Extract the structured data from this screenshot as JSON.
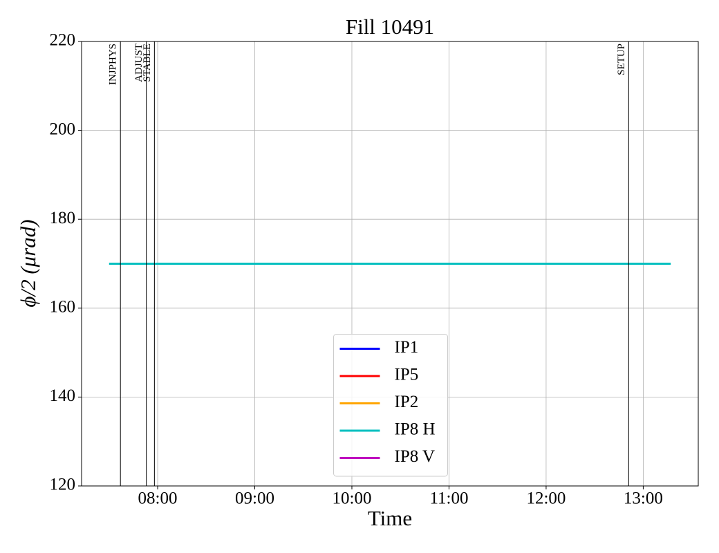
{
  "chart_data": {
    "type": "line",
    "title": "Fill 10491",
    "xlabel": "Time",
    "ylabel": "ϕ/2 (μrad)",
    "x": [
      "07:30",
      "13:17"
    ],
    "series": [
      {
        "name": "IP1",
        "color": "#0000ff",
        "values": [
          null,
          null
        ]
      },
      {
        "name": "IP5",
        "color": "#ff0000",
        "values": [
          null,
          null
        ]
      },
      {
        "name": "IP2",
        "color": "#ffa500",
        "values": [
          null,
          null
        ]
      },
      {
        "name": "IP8 H",
        "color": "#00bfbf",
        "values": [
          170,
          170
        ]
      },
      {
        "name": "IP8 V",
        "color": "#bf00bf",
        "values": [
          null,
          null
        ]
      }
    ],
    "events": [
      {
        "label": "INJPHYS",
        "x": "07:37"
      },
      {
        "label": "ADJUST",
        "x": "07:53"
      },
      {
        "label": "STABLE",
        "x": "07:58"
      },
      {
        "label": "SETUP",
        "x": "12:51"
      }
    ],
    "xlim": [
      "07:13",
      "13:34"
    ],
    "xticks": [
      "08:00",
      "09:00",
      "10:00",
      "11:00",
      "12:00",
      "13:00"
    ],
    "ylim": [
      120,
      220
    ],
    "yticks": [
      120,
      140,
      160,
      180,
      200,
      220
    ],
    "grid": true,
    "legend": "lower center"
  }
}
